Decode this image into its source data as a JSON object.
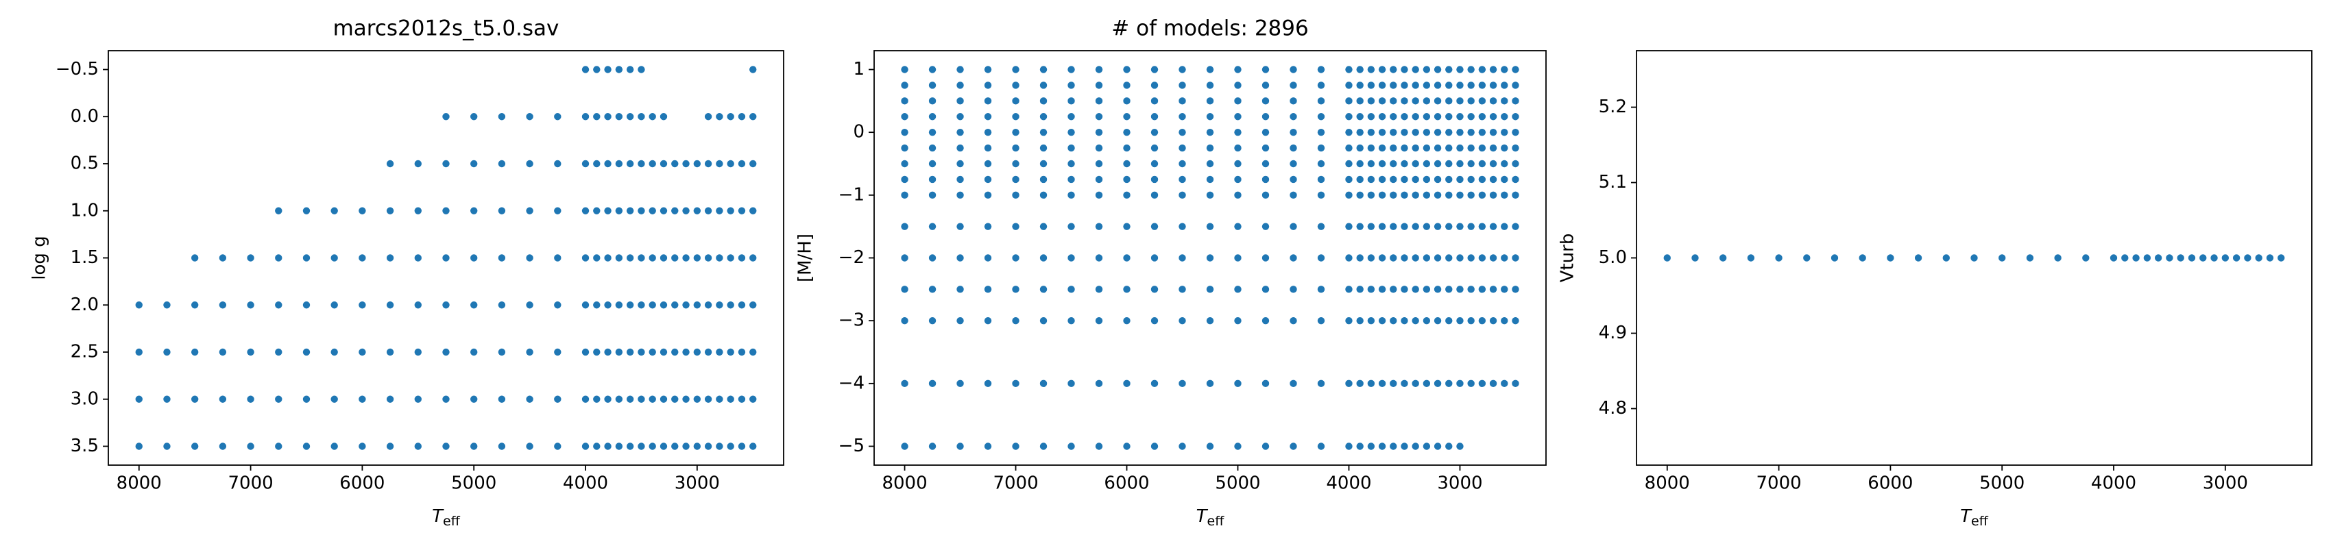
{
  "chart_data": [
    {
      "type": "scatter",
      "title": "marcs2012s_t5.0.sav",
      "xlabel": [
        "T",
        "eff"
      ],
      "ylabel": "log g",
      "color": "#1f77b4",
      "xlim": [
        8275,
        2225
      ],
      "ylim": [
        3.7,
        -0.7
      ],
      "xticks": [
        8000,
        7000,
        6000,
        5000,
        4000,
        3000
      ],
      "yticks": [
        {
          "value": -0.5,
          "label": "−0.5"
        },
        {
          "value": 0,
          "label": "0.0"
        },
        0.5,
        {
          "value": 1,
          "label": "1.0"
        },
        1.5,
        {
          "value": 2,
          "label": "2.0"
        },
        2.5,
        {
          "value": 3,
          "label": "3.0"
        },
        3.5
      ],
      "points_by_y": [
        {
          "y": 3.5,
          "x": [
            8000,
            7750,
            7500,
            7250,
            7000,
            6750,
            6500,
            6250,
            6000,
            5750,
            5500,
            5250,
            5000,
            4750,
            4500,
            4250,
            4000,
            3900,
            3800,
            3700,
            3600,
            3500,
            3400,
            3300,
            3200,
            3100,
            3000,
            2900,
            2800,
            2700,
            2600,
            2500
          ]
        },
        {
          "y": 3.0,
          "x": [
            8000,
            7750,
            7500,
            7250,
            7000,
            6750,
            6500,
            6250,
            6000,
            5750,
            5500,
            5250,
            5000,
            4750,
            4500,
            4250,
            4000,
            3900,
            3800,
            3700,
            3600,
            3500,
            3400,
            3300,
            3200,
            3100,
            3000,
            2900,
            2800,
            2700,
            2600,
            2500
          ]
        },
        {
          "y": 2.5,
          "x": [
            8000,
            7750,
            7500,
            7250,
            7000,
            6750,
            6500,
            6250,
            6000,
            5750,
            5500,
            5250,
            5000,
            4750,
            4500,
            4250,
            4000,
            3900,
            3800,
            3700,
            3600,
            3500,
            3400,
            3300,
            3200,
            3100,
            3000,
            2900,
            2800,
            2700,
            2600,
            2500
          ]
        },
        {
          "y": 2.0,
          "x": [
            8000,
            7750,
            7500,
            7250,
            7000,
            6750,
            6500,
            6250,
            6000,
            5750,
            5500,
            5250,
            5000,
            4750,
            4500,
            4250,
            4000,
            3900,
            3800,
            3700,
            3600,
            3500,
            3400,
            3300,
            3200,
            3100,
            3000,
            2900,
            2800,
            2700,
            2600,
            2500
          ]
        },
        {
          "y": 1.5,
          "x": [
            7500,
            7250,
            7000,
            6750,
            6500,
            6250,
            6000,
            5750,
            5500,
            5250,
            5000,
            4750,
            4500,
            4250,
            4000,
            3900,
            3800,
            3700,
            3600,
            3500,
            3400,
            3300,
            3200,
            3100,
            3000,
            2900,
            2800,
            2700,
            2600,
            2500
          ]
        },
        {
          "y": 1.0,
          "x": [
            6750,
            6500,
            6250,
            6000,
            5750,
            5500,
            5250,
            5000,
            4750,
            4500,
            4250,
            4000,
            3900,
            3800,
            3700,
            3600,
            3500,
            3400,
            3300,
            3200,
            3100,
            3000,
            2900,
            2800,
            2700,
            2600,
            2500
          ]
        },
        {
          "y": 0.5,
          "x": [
            5750,
            5500,
            5250,
            5000,
            4750,
            4500,
            4250,
            4000,
            3900,
            3800,
            3700,
            3600,
            3500,
            3400,
            3300,
            3200,
            3100,
            3000,
            2900,
            2800,
            2700,
            2600,
            2500
          ]
        },
        {
          "y": 0.0,
          "x": [
            5250,
            5000,
            4750,
            4500,
            4250,
            4000,
            3900,
            3800,
            3700,
            3600,
            3500,
            3400,
            3300,
            2900,
            2800,
            2700,
            2600,
            2500
          ]
        },
        {
          "y": -0.5,
          "x": [
            4000,
            3900,
            3800,
            3700,
            3600,
            3500,
            2500
          ]
        }
      ]
    },
    {
      "type": "scatter",
      "title": "# of models: 2896",
      "xlabel": [
        "T",
        "eff"
      ],
      "ylabel": "[M/H]",
      "color": "#1f77b4",
      "xlim": [
        8275,
        2225
      ],
      "ylim": [
        -5.3,
        1.3
      ],
      "xticks": [
        8000,
        7000,
        6000,
        5000,
        4000,
        3000
      ],
      "yticks": [
        {
          "value": -5,
          "label": "−5"
        },
        {
          "value": -4,
          "label": "−4"
        },
        {
          "value": -3,
          "label": "−3"
        },
        {
          "value": -2,
          "label": "−2"
        },
        {
          "value": -1,
          "label": "−1"
        },
        0,
        1
      ],
      "points_by_y": [
        {
          "y": 1.0,
          "x": [
            8000,
            7750,
            7500,
            7250,
            7000,
            6750,
            6500,
            6250,
            6000,
            5750,
            5500,
            5250,
            5000,
            4750,
            4500,
            4250,
            4000,
            3900,
            3800,
            3700,
            3600,
            3500,
            3400,
            3300,
            3200,
            3100,
            3000,
            2900,
            2800,
            2700,
            2600,
            2500
          ]
        },
        {
          "y": 0.75,
          "x": [
            8000,
            7750,
            7500,
            7250,
            7000,
            6750,
            6500,
            6250,
            6000,
            5750,
            5500,
            5250,
            5000,
            4750,
            4500,
            4250,
            4000,
            3900,
            3800,
            3700,
            3600,
            3500,
            3400,
            3300,
            3200,
            3100,
            3000,
            2900,
            2800,
            2700,
            2600,
            2500
          ]
        },
        {
          "y": 0.5,
          "x": [
            8000,
            7750,
            7500,
            7250,
            7000,
            6750,
            6500,
            6250,
            6000,
            5750,
            5500,
            5250,
            5000,
            4750,
            4500,
            4250,
            4000,
            3900,
            3800,
            3700,
            3600,
            3500,
            3400,
            3300,
            3200,
            3100,
            3000,
            2900,
            2800,
            2700,
            2600,
            2500
          ]
        },
        {
          "y": 0.25,
          "x": [
            8000,
            7750,
            7500,
            7250,
            7000,
            6750,
            6500,
            6250,
            6000,
            5750,
            5500,
            5250,
            5000,
            4750,
            4500,
            4250,
            4000,
            3900,
            3800,
            3700,
            3600,
            3500,
            3400,
            3300,
            3200,
            3100,
            3000,
            2900,
            2800,
            2700,
            2600,
            2500
          ]
        },
        {
          "y": 0.0,
          "x": [
            8000,
            7750,
            7500,
            7250,
            7000,
            6750,
            6500,
            6250,
            6000,
            5750,
            5500,
            5250,
            5000,
            4750,
            4500,
            4250,
            4000,
            3900,
            3800,
            3700,
            3600,
            3500,
            3400,
            3300,
            3200,
            3100,
            3000,
            2900,
            2800,
            2700,
            2600,
            2500
          ]
        },
        {
          "y": -0.25,
          "x": [
            8000,
            7750,
            7500,
            7250,
            7000,
            6750,
            6500,
            6250,
            6000,
            5750,
            5500,
            5250,
            5000,
            4750,
            4500,
            4250,
            4000,
            3900,
            3800,
            3700,
            3600,
            3500,
            3400,
            3300,
            3200,
            3100,
            3000,
            2900,
            2800,
            2700,
            2600,
            2500
          ]
        },
        {
          "y": -0.5,
          "x": [
            8000,
            7750,
            7500,
            7250,
            7000,
            6750,
            6500,
            6250,
            6000,
            5750,
            5500,
            5250,
            5000,
            4750,
            4500,
            4250,
            4000,
            3900,
            3800,
            3700,
            3600,
            3500,
            3400,
            3300,
            3200,
            3100,
            3000,
            2900,
            2800,
            2700,
            2600,
            2500
          ]
        },
        {
          "y": -0.75,
          "x": [
            8000,
            7750,
            7500,
            7250,
            7000,
            6750,
            6500,
            6250,
            6000,
            5750,
            5500,
            5250,
            5000,
            4750,
            4500,
            4250,
            4000,
            3900,
            3800,
            3700,
            3600,
            3500,
            3400,
            3300,
            3200,
            3100,
            3000,
            2900,
            2800,
            2700,
            2600,
            2500
          ]
        },
        {
          "y": -1.0,
          "x": [
            8000,
            7750,
            7500,
            7250,
            7000,
            6750,
            6500,
            6250,
            6000,
            5750,
            5500,
            5250,
            5000,
            4750,
            4500,
            4250,
            4000,
            3900,
            3800,
            3700,
            3600,
            3500,
            3400,
            3300,
            3200,
            3100,
            3000,
            2900,
            2800,
            2700,
            2600,
            2500
          ]
        },
        {
          "y": -1.5,
          "x": [
            8000,
            7750,
            7500,
            7250,
            7000,
            6750,
            6500,
            6250,
            6000,
            5750,
            5500,
            5250,
            5000,
            4750,
            4500,
            4250,
            4000,
            3900,
            3800,
            3700,
            3600,
            3500,
            3400,
            3300,
            3200,
            3100,
            3000,
            2900,
            2800,
            2700,
            2600,
            2500
          ]
        },
        {
          "y": -2.0,
          "x": [
            8000,
            7750,
            7500,
            7250,
            7000,
            6750,
            6500,
            6250,
            6000,
            5750,
            5500,
            5250,
            5000,
            4750,
            4500,
            4250,
            4000,
            3900,
            3800,
            3700,
            3600,
            3500,
            3400,
            3300,
            3200,
            3100,
            3000,
            2900,
            2800,
            2700,
            2600,
            2500
          ]
        },
        {
          "y": -2.5,
          "x": [
            8000,
            7750,
            7500,
            7250,
            7000,
            6750,
            6500,
            6250,
            6000,
            5750,
            5500,
            5250,
            5000,
            4750,
            4500,
            4250,
            4000,
            3900,
            3800,
            3700,
            3600,
            3500,
            3400,
            3300,
            3200,
            3100,
            3000,
            2900,
            2800,
            2700,
            2600,
            2500
          ]
        },
        {
          "y": -3.0,
          "x": [
            8000,
            7750,
            7500,
            7250,
            7000,
            6750,
            6500,
            6250,
            6000,
            5750,
            5500,
            5250,
            5000,
            4750,
            4500,
            4250,
            4000,
            3900,
            3800,
            3700,
            3600,
            3500,
            3400,
            3300,
            3200,
            3100,
            3000,
            2900,
            2800,
            2700,
            2600,
            2500
          ]
        },
        {
          "y": -4.0,
          "x": [
            8000,
            7750,
            7500,
            7250,
            7000,
            6750,
            6500,
            6250,
            6000,
            5750,
            5500,
            5250,
            5000,
            4750,
            4500,
            4250,
            4000,
            3900,
            3800,
            3700,
            3600,
            3500,
            3400,
            3300,
            3200,
            3100,
            3000,
            2900,
            2800,
            2700,
            2600,
            2500
          ]
        },
        {
          "y": -5.0,
          "x": [
            8000,
            7750,
            7500,
            7250,
            7000,
            6750,
            6500,
            6250,
            6000,
            5750,
            5500,
            5250,
            5000,
            4750,
            4500,
            4250,
            4000,
            3900,
            3800,
            3700,
            3600,
            3500,
            3400,
            3300,
            3200,
            3100,
            3000
          ]
        }
      ]
    },
    {
      "type": "scatter",
      "xlabel": [
        "T",
        "eff"
      ],
      "ylabel": "Vturb",
      "color": "#1f77b4",
      "xlim": [
        8275,
        2225
      ],
      "ylim": [
        4.725,
        5.275
      ],
      "xticks": [
        8000,
        7000,
        6000,
        5000,
        4000,
        3000
      ],
      "yticks": [
        4.8,
        4.9,
        {
          "value": 5,
          "label": "5.0"
        },
        5.1,
        5.2
      ],
      "points_by_y": [
        {
          "y": 5.0,
          "x": [
            8000,
            7750,
            7500,
            7250,
            7000,
            6750,
            6500,
            6250,
            6000,
            5750,
            5500,
            5250,
            5000,
            4750,
            4500,
            4250,
            4000,
            3900,
            3800,
            3700,
            3600,
            3500,
            3400,
            3300,
            3200,
            3100,
            3000,
            2900,
            2800,
            2700,
            2600,
            2500
          ]
        }
      ]
    }
  ]
}
